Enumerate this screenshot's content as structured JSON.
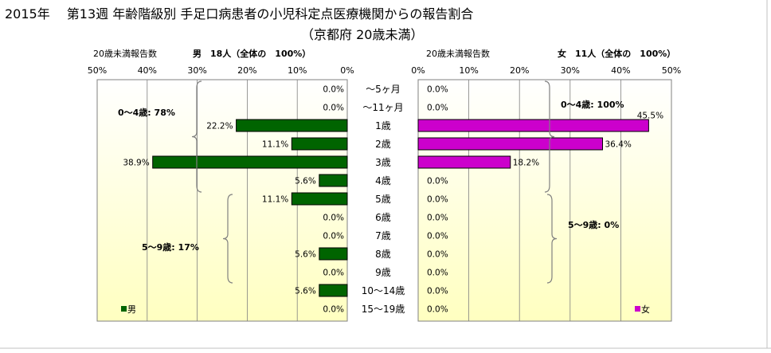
{
  "title_line1": "2015年　 第13週 年齢階級別 手足口病患者の小児科定点医療機関からの報告割合",
  "title_line2": "（京都府 20歳未満）",
  "colors": {
    "male": "#006400",
    "female": "#cc00cc",
    "gradient_top": "#ffffff",
    "gradient_bottom": "#ffffc0"
  },
  "chart_data": {
    "type": "bar",
    "categories": [
      "～5ヶ月",
      "～11ヶ月",
      "1歳",
      "2歳",
      "3歳",
      "4歳",
      "5歳",
      "6歳",
      "7歳",
      "8歳",
      "9歳",
      "10～14歳",
      "15～19歳"
    ],
    "xlim": [
      0,
      50
    ],
    "ticks": [
      "0%",
      "10%",
      "20%",
      "30%",
      "40%",
      "50%"
    ],
    "tick_values": [
      0,
      10,
      20,
      30,
      40,
      50
    ],
    "series": [
      {
        "name": "男",
        "header_left": "20歳未満報告数",
        "header_right": "男　18人（全体の　100%）",
        "values": [
          0.0,
          0.0,
          22.2,
          11.1,
          38.9,
          5.6,
          11.1,
          0.0,
          0.0,
          5.6,
          0.0,
          5.6,
          0.0
        ],
        "labels": [
          "0.0%",
          "0.0%",
          "22.2%",
          "11.1%",
          "38.9%",
          "5.6%",
          "11.1%",
          "0.0%",
          "0.0%",
          "5.6%",
          "0.0%",
          "5.6%",
          "0.0%"
        ],
        "group_labels": [
          "0～4歳: 78%",
          "5～9歳: 17%"
        ]
      },
      {
        "name": "女",
        "header_left": "20歳未満報告数",
        "header_right": "女　11人（全体の　100%）",
        "values": [
          0.0,
          0.0,
          45.5,
          36.4,
          18.2,
          0.0,
          0.0,
          0.0,
          0.0,
          0.0,
          0.0,
          0.0,
          0.0
        ],
        "labels": [
          "0.0%",
          "0.0%",
          "45.5%",
          "36.4%",
          "18.2%",
          "0.0%",
          "0.0%",
          "0.0%",
          "0.0%",
          "0.0%",
          "0.0%",
          "0.0%",
          "0.0%"
        ],
        "group_labels": [
          "0～4歳: 100%",
          "5～9歳: 0%"
        ]
      }
    ],
    "legend": [
      "男",
      "女"
    ],
    "legend_placement": "bottom-left / bottom-right",
    "grid": true
  }
}
